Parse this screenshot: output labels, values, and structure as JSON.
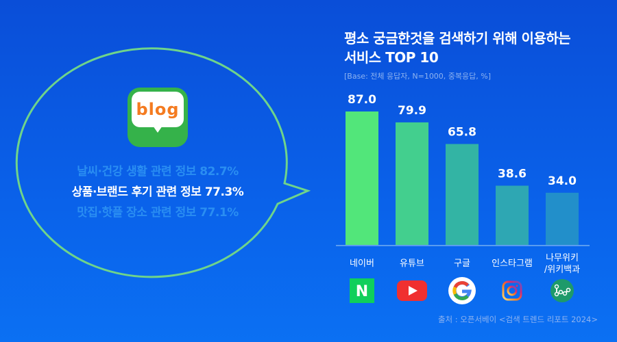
{
  "left": {
    "logo": "blog",
    "lines": [
      {
        "text": "날씨·건강 생활 관련 정보 82.7%",
        "highlight": false
      },
      {
        "text": "상품·브랜드 후기 관련 정보 77.3%",
        "highlight": true
      },
      {
        "text": "맛집·핫플 장소 관련 정보 77.1%",
        "highlight": false
      }
    ]
  },
  "colors": {
    "bubble_outline": "#6fd48a",
    "blog_green": "#35b24a",
    "blog_orange": "#f47b20",
    "dim_text": "#2a8ef2"
  },
  "chart_data": {
    "type": "bar",
    "title": "평소 궁금한것을 검색하기 위해 이용하는 서비스 TOP 10",
    "title_lines": [
      "평소 궁금한것을 검색하기 위해 이용하는",
      "서비스 TOP 10"
    ],
    "subtitle": "[Base: 전체 응답자, N=1000, 중복응답, %]",
    "categories": [
      "네이버",
      "유튜브",
      "구글",
      "인스타그램",
      "나무위키 /위키백과"
    ],
    "category_lines": [
      [
        "네이버"
      ],
      [
        "유튜브"
      ],
      [
        "구글"
      ],
      [
        "인스타그램"
      ],
      [
        "나무위키",
        "/위키백과"
      ]
    ],
    "values": [
      87.0,
      79.9,
      65.8,
      38.6,
      34.0
    ],
    "value_labels": [
      "87.0",
      "79.9",
      "65.8",
      "38.6",
      "34.0"
    ],
    "bar_colors": [
      "#52e67a",
      "#43cf8e",
      "#33b4a4",
      "#2ea7b3",
      "#228fca"
    ],
    "icons": [
      "naver-icon",
      "youtube-icon",
      "google-icon",
      "instagram-icon",
      "namuwiki-icon"
    ],
    "ylim": [
      0,
      87.0
    ],
    "grid": false
  },
  "source": "출처 : 오픈서베이 <검색 트렌드 리포트 2024>"
}
